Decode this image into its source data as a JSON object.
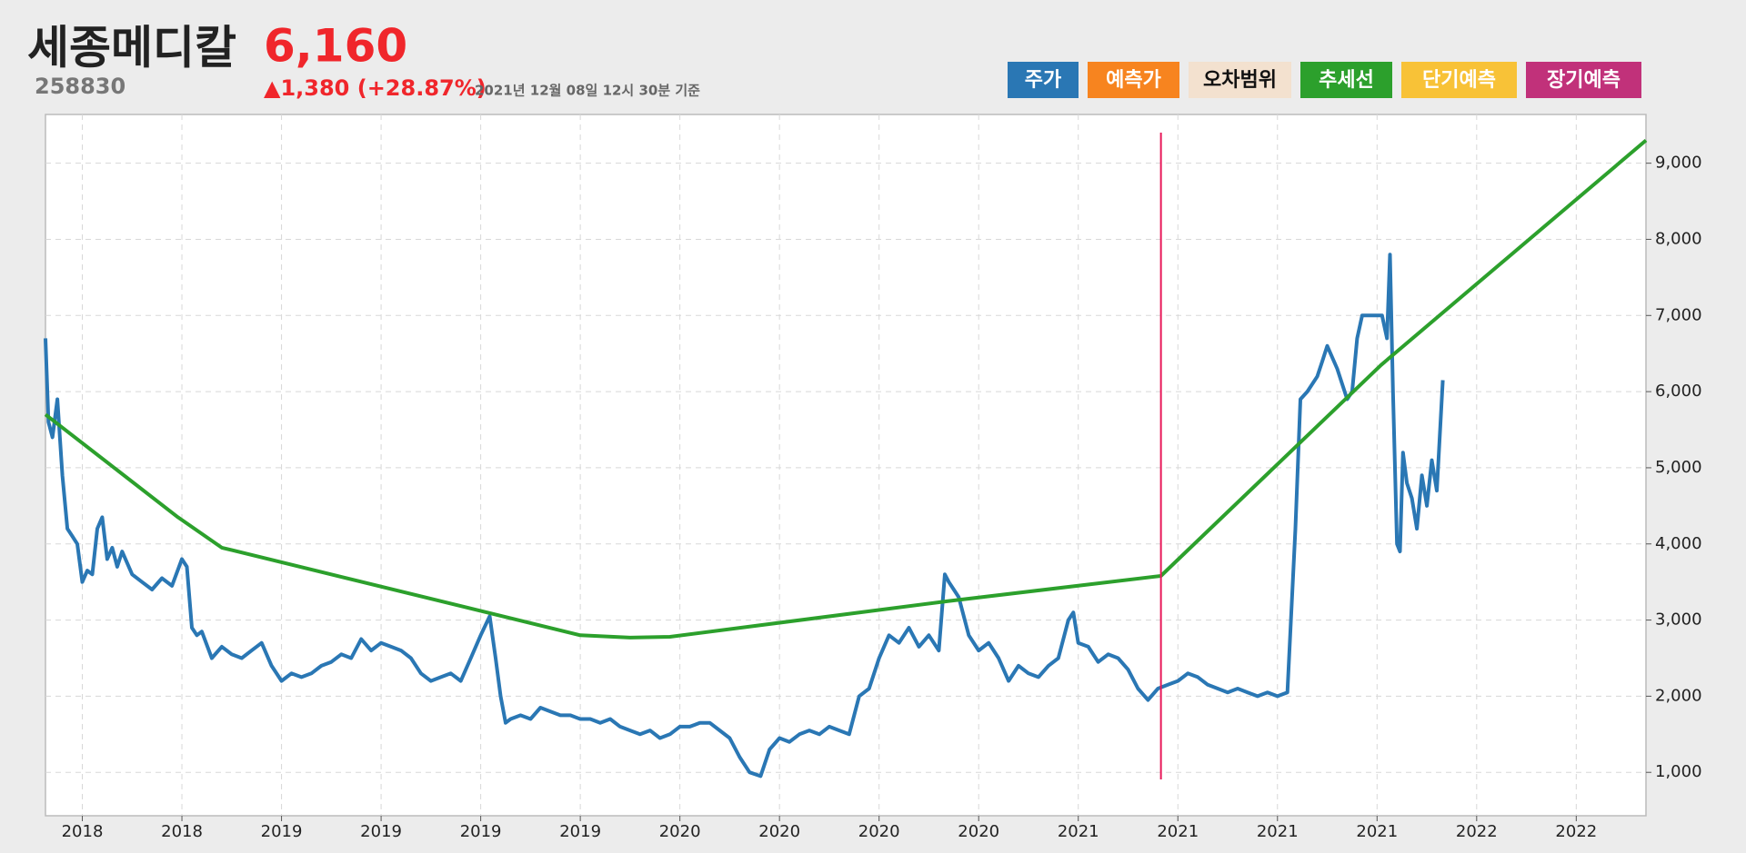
{
  "header": {
    "name": "세종메디칼",
    "price": "6,160",
    "code": "258830",
    "change": "▲1,380 (+28.87%)",
    "timestamp": "2021년 12월 08일 12시 30분 기준"
  },
  "legend": [
    {
      "name": "주가",
      "color": "#2a77b4",
      "text_color": "#ffffff"
    },
    {
      "name": "예측가",
      "color": "#f7841f",
      "text_color": "#ffffff"
    },
    {
      "name": "오차범위",
      "color": "#f3e1cf",
      "text_color": "#111111"
    },
    {
      "name": "추세선",
      "color": "#2ca02c",
      "text_color": "#ffffff"
    },
    {
      "name": "단기예측",
      "color": "#f8c237",
      "text_color": "#ffffff"
    },
    {
      "name": "장기예측",
      "color": "#c1317a",
      "text_color": "#ffffff"
    }
  ],
  "chart_data": {
    "type": "line",
    "xlim": [
      6.3,
      167
    ],
    "ylim": [
      430,
      9640
    ],
    "grid": true,
    "xticks": [
      {
        "value": 10,
        "label": "2018"
      },
      {
        "value": 20,
        "label": "2018"
      },
      {
        "value": 30,
        "label": "2019"
      },
      {
        "value": 40,
        "label": "2019"
      },
      {
        "value": 50,
        "label": "2019"
      },
      {
        "value": 60,
        "label": "2019"
      },
      {
        "value": 70,
        "label": "2020"
      },
      {
        "value": 80,
        "label": "2020"
      },
      {
        "value": 90,
        "label": "2020"
      },
      {
        "value": 100,
        "label": "2020"
      },
      {
        "value": 110,
        "label": "2021"
      },
      {
        "value": 120,
        "label": "2021"
      },
      {
        "value": 130,
        "label": "2021"
      },
      {
        "value": 140,
        "label": "2021"
      },
      {
        "value": 150,
        "label": "2022"
      },
      {
        "value": 160,
        "label": "2022"
      }
    ],
    "yticks": [
      {
        "value": 1000,
        "label": "1,000"
      },
      {
        "value": 2000,
        "label": "2,000"
      },
      {
        "value": 3000,
        "label": "3,000"
      },
      {
        "value": 4000,
        "label": "4,000"
      },
      {
        "value": 5000,
        "label": "5,000"
      },
      {
        "value": 6000,
        "label": "6,000"
      },
      {
        "value": 7000,
        "label": "7,000"
      },
      {
        "value": 8000,
        "label": "8,000"
      },
      {
        "value": 9000,
        "label": "9,000"
      }
    ],
    "vline": {
      "x": 118.3,
      "color": "#e8195a"
    },
    "series": [
      {
        "name": "주가",
        "color": "#2a77b4",
        "x": [
          6.3,
          6.6,
          7,
          7.5,
          8,
          8.5,
          9,
          9.5,
          10,
          10.5,
          11,
          11.5,
          12,
          12.5,
          13,
          13.5,
          14,
          15,
          16,
          17,
          18,
          19,
          20,
          20.5,
          21,
          21.5,
          22,
          23,
          24,
          25,
          26,
          27,
          28,
          29,
          30,
          31,
          32,
          33,
          34,
          35,
          36,
          37,
          38,
          39,
          40,
          41,
          42,
          43,
          44,
          45,
          46,
          47,
          48,
          49,
          50,
          50.9,
          51.5,
          52,
          52.5,
          53,
          54,
          55,
          56,
          57,
          58,
          59,
          60,
          61,
          62,
          63,
          64,
          65,
          66,
          67,
          68,
          69,
          70,
          71,
          72,
          73,
          74,
          75,
          76,
          77,
          78.1,
          79,
          80,
          81,
          82,
          83,
          84,
          85,
          86,
          87,
          88,
          89,
          90,
          91,
          92,
          93,
          94,
          95,
          96,
          96.6,
          97,
          98,
          99,
          100,
          101,
          102,
          103,
          104,
          105,
          106,
          107,
          108,
          109,
          109.5,
          110,
          111,
          112,
          113,
          114,
          115,
          116,
          117,
          118,
          119,
          120,
          121,
          122,
          123,
          124,
          125,
          126,
          127,
          128,
          129,
          130,
          131,
          131.8,
          132.3,
          133,
          134,
          134.5,
          135,
          136,
          137,
          137.5,
          138,
          138.5,
          140.5,
          141,
          141.3,
          141.6,
          142,
          142.3,
          142.6,
          143,
          143.5,
          144,
          144.5,
          145,
          145.5,
          146,
          146.6
        ],
        "values": [
          6700,
          5600,
          5400,
          5900,
          4900,
          4200,
          4100,
          4000,
          3500,
          3650,
          3600,
          4200,
          4350,
          3800,
          3950,
          3700,
          3900,
          3600,
          3500,
          3400,
          3550,
          3450,
          3800,
          3700,
          2900,
          2800,
          2850,
          2500,
          2650,
          2550,
          2500,
          2600,
          2700,
          2400,
          2200,
          2300,
          2250,
          2300,
          2400,
          2450,
          2550,
          2500,
          2750,
          2600,
          2700,
          2650,
          2600,
          2500,
          2300,
          2200,
          2250,
          2300,
          2200,
          2500,
          2800,
          3050,
          2500,
          2000,
          1650,
          1700,
          1750,
          1700,
          1850,
          1800,
          1750,
          1750,
          1700,
          1700,
          1650,
          1700,
          1600,
          1550,
          1500,
          1550,
          1450,
          1500,
          1600,
          1600,
          1650,
          1650,
          1550,
          1450,
          1200,
          1000,
          950,
          1300,
          1450,
          1400,
          1500,
          1550,
          1500,
          1600,
          1550,
          1500,
          2000,
          2100,
          2500,
          2800,
          2700,
          2900,
          2650,
          2800,
          2600,
          3600,
          3500,
          3300,
          2800,
          2600,
          2700,
          2500,
          2200,
          2400,
          2300,
          2250,
          2400,
          2500,
          3000,
          3100,
          2700,
          2650,
          2450,
          2550,
          2500,
          2350,
          2100,
          1950,
          2100,
          2150,
          2200,
          2300,
          2250,
          2150,
          2100,
          2050,
          2100,
          2050,
          2000,
          2050,
          2000,
          2050,
          4200,
          5900,
          6000,
          6200,
          6400,
          6600,
          6300,
          5900,
          6000,
          6700,
          7000,
          7000,
          6700,
          7800,
          6000,
          4000,
          3900,
          5200,
          4800,
          4600,
          4200,
          4900,
          4500,
          5100,
          4700,
          6150
        ]
      },
      {
        "name": "추세선",
        "color": "#2ca02c",
        "x": [
          6.3,
          19.6,
          24,
          60,
          65,
          69,
          97,
          118.3,
          140.4,
          167
        ],
        "values": [
          5700,
          4350,
          3950,
          2800,
          2770,
          2780,
          3250,
          3580,
          6350,
          9300
        ]
      }
    ]
  }
}
